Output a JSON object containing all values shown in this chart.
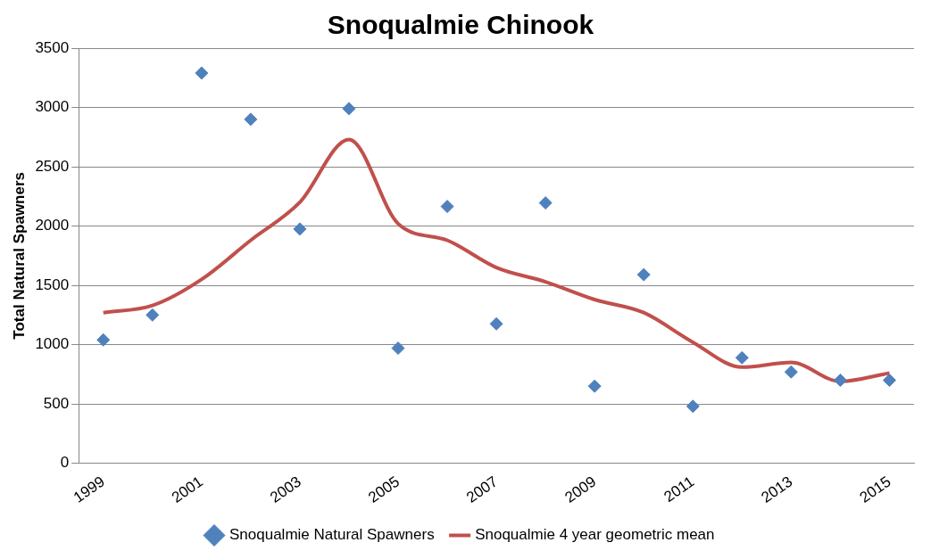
{
  "chart_data": {
    "type": "scatter",
    "title": "Snoqualmie Chinook",
    "ylabel": "Total Natural Spawners",
    "categories": [
      "1999",
      null,
      "2001",
      null,
      "2003",
      null,
      "2005",
      null,
      "2007",
      null,
      "2009",
      null,
      "2011",
      null,
      "2013",
      null,
      "2015"
    ],
    "series": [
      {
        "name": "Snoqualmie Natural Spawners",
        "type": "scatter",
        "marker": "diamond",
        "color": "#4f81bd",
        "values": [
          1040,
          1250,
          3290,
          2900,
          1975,
          2990,
          970,
          2165,
          1175,
          2195,
          650,
          1590,
          480,
          890,
          770,
          700,
          700
        ]
      },
      {
        "name": "Snoqualmie 4 year geometric mean",
        "type": "line",
        "marker": "none",
        "color": "#c0504d",
        "values": [
          1270,
          1330,
          1550,
          1880,
          2200,
          2730,
          2020,
          1880,
          1650,
          1530,
          1380,
          1270,
          1020,
          810,
          850,
          690,
          760
        ]
      }
    ],
    "ylim": [
      0,
      3500
    ],
    "yticks": [
      0,
      500,
      1000,
      1500,
      2000,
      2500,
      3000,
      3500
    ],
    "grid": "y",
    "legend": "bottom"
  }
}
